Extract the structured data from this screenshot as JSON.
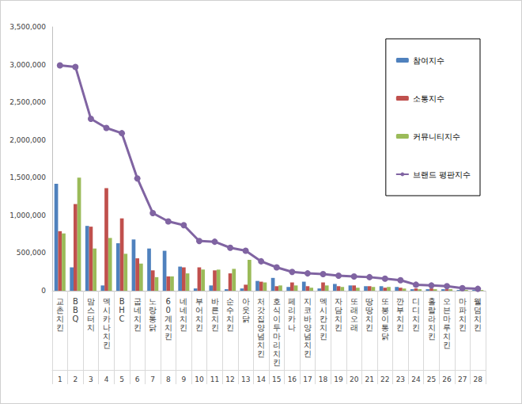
{
  "chart_data": {
    "type": "bar",
    "categories": [
      "교촌치킨",
      "BBQ",
      "맘스터치",
      "멕시카나치킨",
      "BHC",
      "굽네치킨",
      "노랑통닭",
      "60계치킨",
      "네네치킨",
      "부어치킨",
      "바른치킨",
      "순수치킨",
      "아웃닭",
      "처갓집양념치킨",
      "호식이두마리치킨",
      "페리카나",
      "지코바양념치킨",
      "멕시칸치킨",
      "자담치킨",
      "또래오래",
      "땅땅치킨",
      "또봉이통닭",
      "깐부치킨",
      "디디치킨",
      "훌랄라치킨",
      "오븐마루치킨",
      "마파치킨",
      "웰덤치킨"
    ],
    "ranks": [
      1,
      2,
      3,
      4,
      5,
      6,
      7,
      8,
      9,
      10,
      11,
      12,
      13,
      14,
      15,
      16,
      17,
      18,
      19,
      20,
      21,
      22,
      23,
      24,
      25,
      26,
      27,
      28
    ],
    "series": [
      {
        "name": "참여지수",
        "type": "bar",
        "color": "#4f81bd",
        "values": [
          1420000,
          310000,
          860000,
          70000,
          630000,
          680000,
          560000,
          530000,
          320000,
          30000,
          70000,
          20000,
          30000,
          130000,
          170000,
          50000,
          120000,
          30000,
          90000,
          70000,
          60000,
          60000,
          50000,
          20000,
          20000,
          20000,
          10000,
          10000
        ]
      },
      {
        "name": "소통지수",
        "type": "bar",
        "color": "#c0504d",
        "values": [
          790000,
          1150000,
          850000,
          1360000,
          960000,
          430000,
          270000,
          190000,
          310000,
          310000,
          270000,
          230000,
          80000,
          120000,
          60000,
          110000,
          60000,
          110000,
          60000,
          70000,
          60000,
          40000,
          40000,
          30000,
          30000,
          20000,
          10000,
          10000
        ]
      },
      {
        "name": "커뮤니티지수",
        "type": "bar",
        "color": "#9bbb59",
        "values": [
          760000,
          1500000,
          560000,
          700000,
          490000,
          360000,
          180000,
          190000,
          230000,
          280000,
          280000,
          290000,
          410000,
          110000,
          70000,
          70000,
          40000,
          70000,
          50000,
          40000,
          50000,
          50000,
          30000,
          20000,
          20000,
          20000,
          10000,
          10000
        ]
      },
      {
        "name": "브랜드 평판지수",
        "type": "line",
        "color": "#8064a2",
        "marker": "circle",
        "values": [
          2990000,
          2970000,
          2280000,
          2160000,
          2090000,
          1490000,
          1030000,
          920000,
          870000,
          660000,
          650000,
          570000,
          530000,
          390000,
          310000,
          250000,
          230000,
          220000,
          200000,
          190000,
          180000,
          160000,
          140000,
          80000,
          70000,
          60000,
          35000,
          25000
        ]
      }
    ],
    "ylim": [
      0,
      3500000
    ],
    "yticks": [
      0,
      {
        "value": 500000,
        "label": "500,000"
      },
      {
        "value": 1000000,
        "label": "1,000,000"
      },
      {
        "value": 1500000,
        "label": "1,500,000"
      },
      {
        "value": 2000000,
        "label": "2,000,000"
      },
      {
        "value": 2500000,
        "label": "2,500,000"
      },
      {
        "value": 3000000,
        "label": "3,000,000"
      },
      {
        "value": 3500000,
        "label": "3,500,000"
      }
    ],
    "grid": false,
    "legend": "top-right"
  }
}
